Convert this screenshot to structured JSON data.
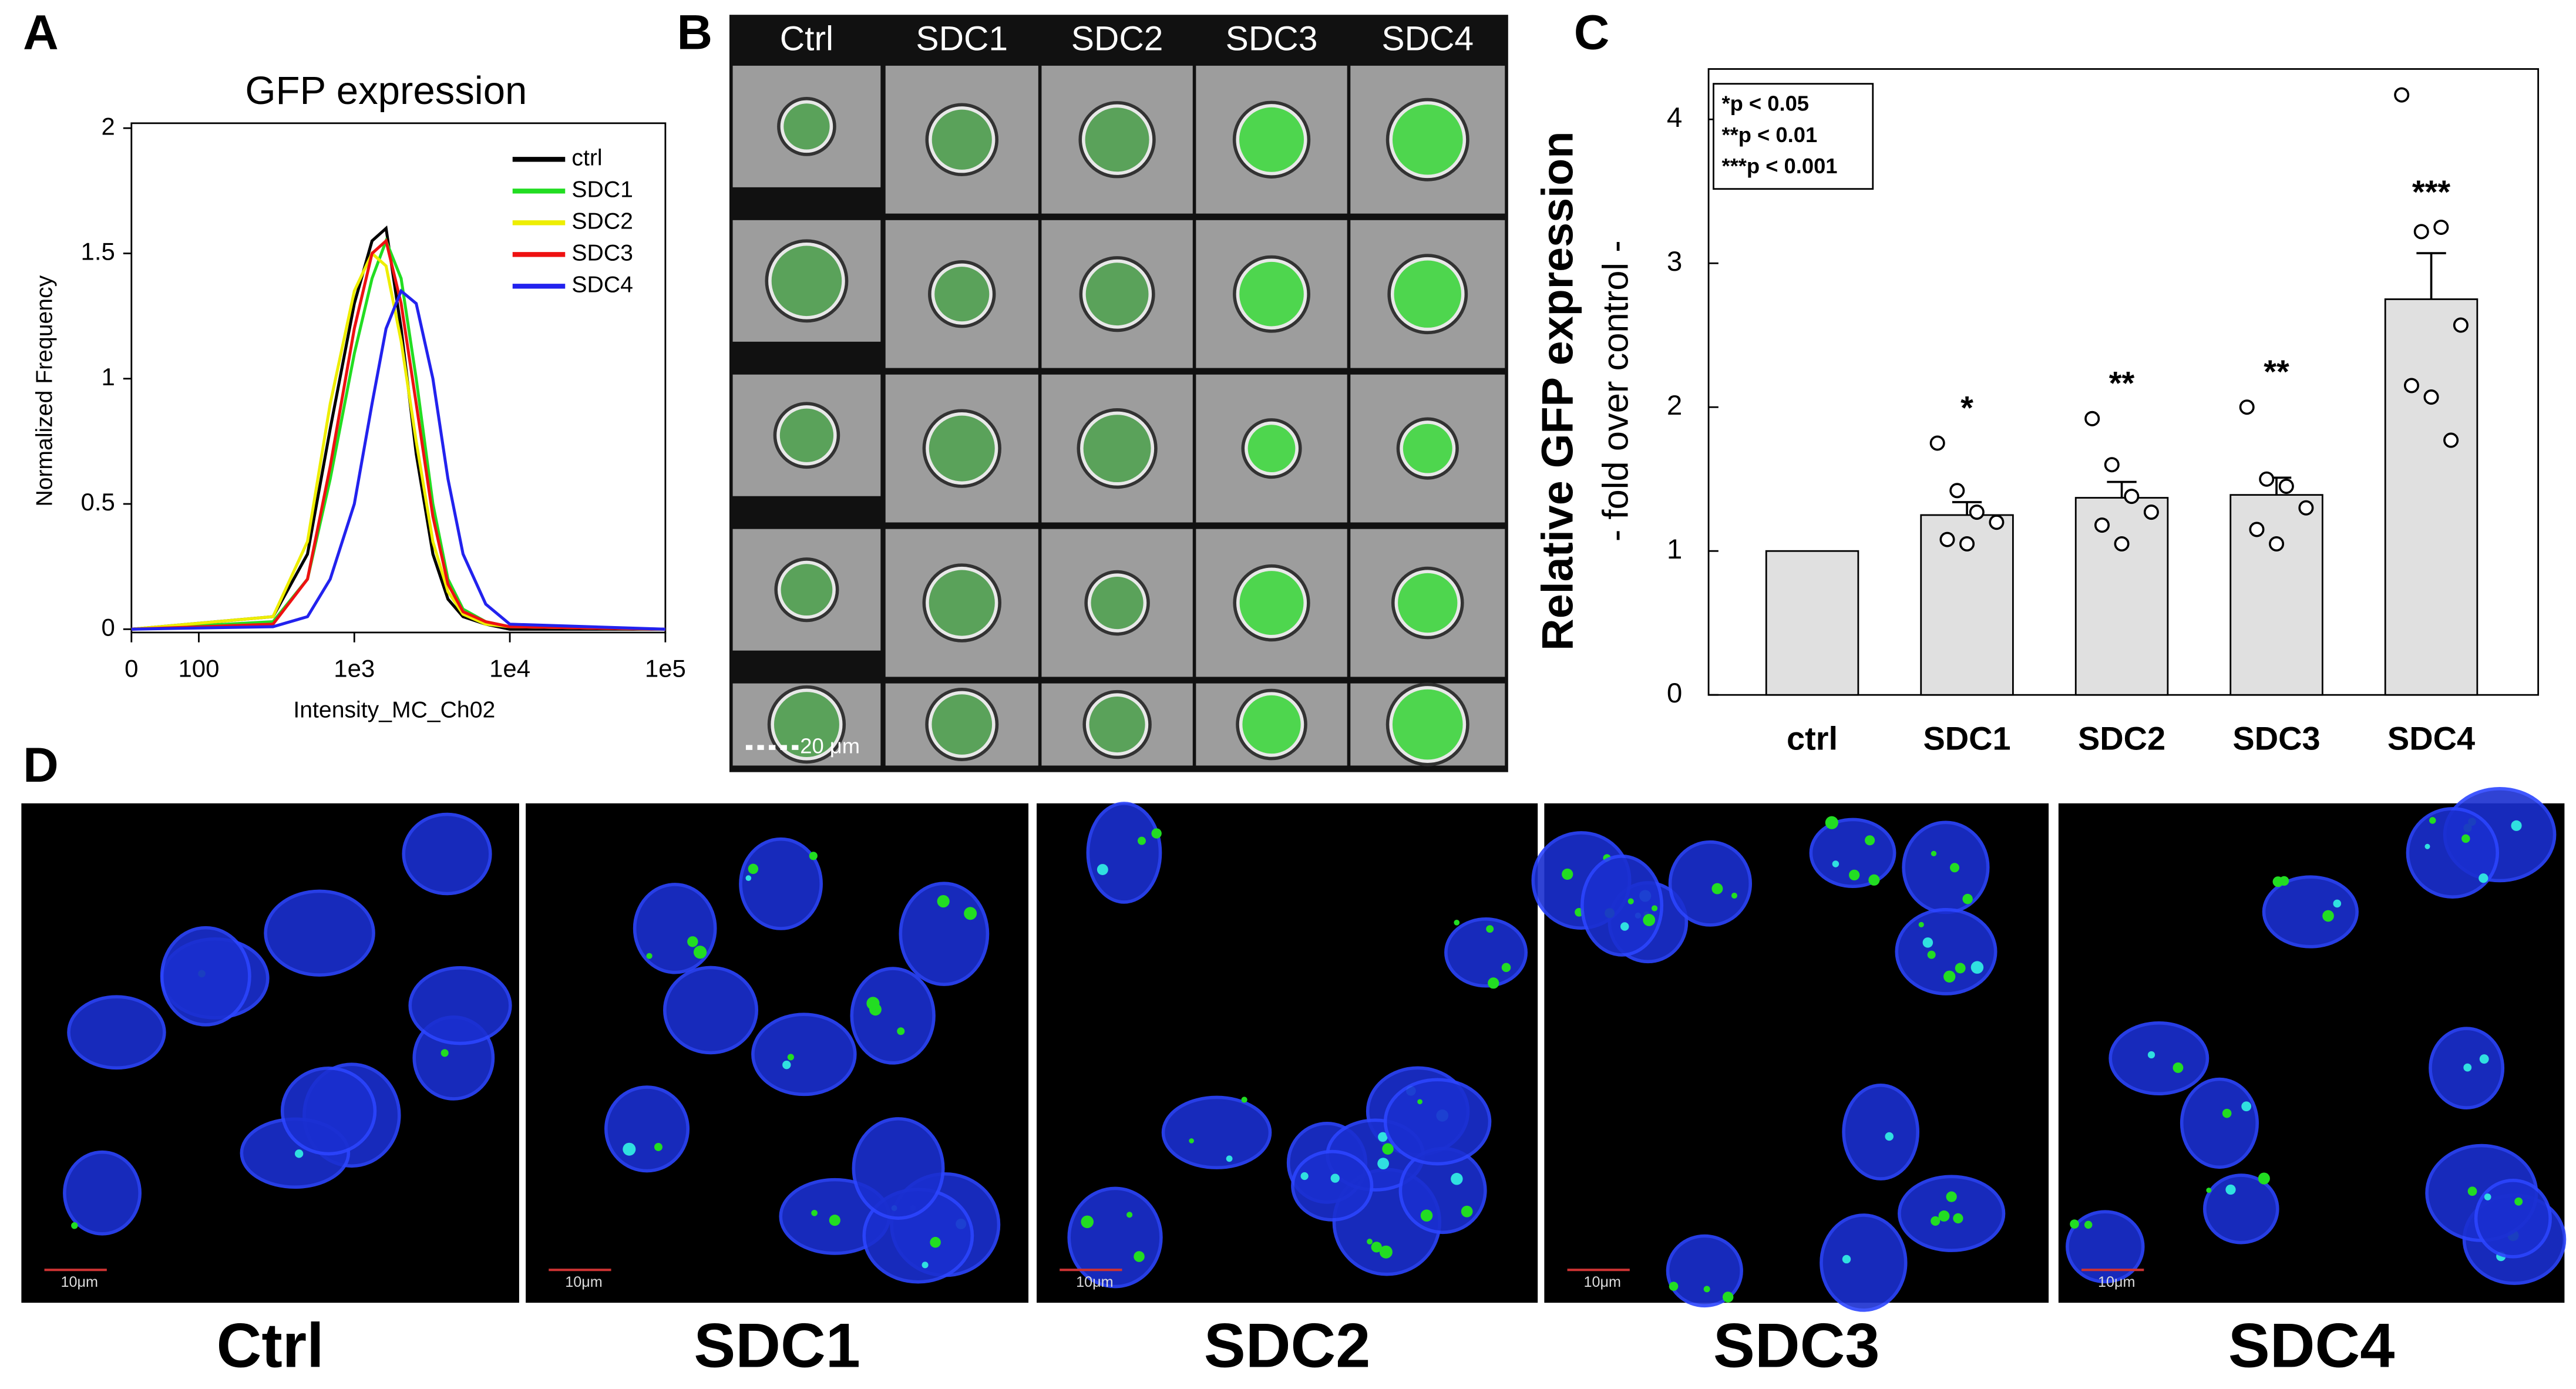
{
  "panel_labels": [
    "A",
    "B",
    "C",
    "D"
  ],
  "chart_data": [
    {
      "type": "line",
      "title": "GFP expression",
      "xlabel": "Intensity_MC_Ch02",
      "ylabel": "Normalized Frequency",
      "xscale": "symlog",
      "x": [
        0,
        300,
        500,
        700,
        1000,
        1300,
        1600,
        2000,
        2500,
        3200,
        4000,
        5000,
        7000,
        10000,
        100000
      ],
      "series": [
        {
          "name": "ctrl",
          "color": "#000000",
          "values": [
            0,
            0.05,
            0.3,
            0.8,
            1.3,
            1.55,
            1.6,
            1.2,
            0.7,
            0.3,
            0.12,
            0.05,
            0.02,
            0,
            0
          ]
        },
        {
          "name": "SDC1",
          "color": "#22dd22",
          "values": [
            0,
            0.03,
            0.2,
            0.6,
            1.1,
            1.4,
            1.55,
            1.4,
            1.0,
            0.5,
            0.2,
            0.08,
            0.03,
            0.01,
            0
          ]
        },
        {
          "name": "SDC2",
          "color": "#eeee00",
          "values": [
            0,
            0.05,
            0.35,
            0.9,
            1.35,
            1.5,
            1.45,
            1.15,
            0.75,
            0.35,
            0.15,
            0.06,
            0.02,
            0.01,
            0
          ]
        },
        {
          "name": "SDC3",
          "color": "#ee1111",
          "values": [
            0,
            0.02,
            0.2,
            0.65,
            1.2,
            1.5,
            1.55,
            1.3,
            0.9,
            0.45,
            0.18,
            0.07,
            0.03,
            0.01,
            0
          ]
        },
        {
          "name": "SDC4",
          "color": "#2222ee",
          "values": [
            0,
            0.01,
            0.05,
            0.2,
            0.5,
            0.9,
            1.2,
            1.35,
            1.3,
            1.0,
            0.6,
            0.3,
            0.1,
            0.02,
            0
          ]
        }
      ],
      "xlim": [
        0,
        100000
      ],
      "xticks": [
        0,
        100,
        {
          "value": 1000,
          "label": "1e3"
        },
        {
          "value": 10000,
          "label": "1e4"
        },
        {
          "value": 100000,
          "label": "1e5"
        }
      ],
      "ylim": [
        0,
        2
      ],
      "yticks": [
        0,
        0.5,
        1,
        1.5,
        2
      ],
      "legend": "upper right"
    },
    {
      "type": "bar",
      "ylabel": "Relative GFP expression",
      "ylabel_sub": "- fold over control -",
      "categories": [
        "ctrl",
        "SDC1",
        "SDC2",
        "SDC3",
        "SDC4"
      ],
      "values": [
        1,
        1.25,
        1.37,
        1.39,
        2.75
      ],
      "errors": [
        0,
        0.09,
        0.11,
        0.12,
        0.32
      ],
      "points": [
        [],
        [
          1.75,
          1.42,
          1.27,
          1.2,
          1.08,
          1.05
        ],
        [
          1.92,
          1.6,
          1.38,
          1.27,
          1.18,
          1.05
        ],
        [
          2.0,
          1.5,
          1.45,
          1.3,
          1.15,
          1.05
        ],
        [
          4.17,
          3.22,
          3.25,
          2.57,
          2.15,
          2.07,
          1.77
        ]
      ],
      "annotations": [
        null,
        "*",
        "**",
        "**",
        "***"
      ],
      "legend_text": [
        "*p < 0.05",
        "**p < 0.01",
        "***p < 0.001"
      ],
      "color": "#e0e0e0",
      "ylim": [
        0,
        4.35
      ],
      "yticks": [
        0,
        1,
        2,
        3,
        4
      ]
    }
  ],
  "image_grid": {
    "columns": [
      "Ctrl",
      "SDC1",
      "SDC2",
      "SDC3",
      "SDC4"
    ],
    "scale_bar": "20 μm"
  },
  "micrographs": {
    "labels": [
      "Ctrl",
      "SDC1",
      "SDC2",
      "SDC3",
      "SDC4"
    ],
    "scale_bar": "10μm"
  }
}
